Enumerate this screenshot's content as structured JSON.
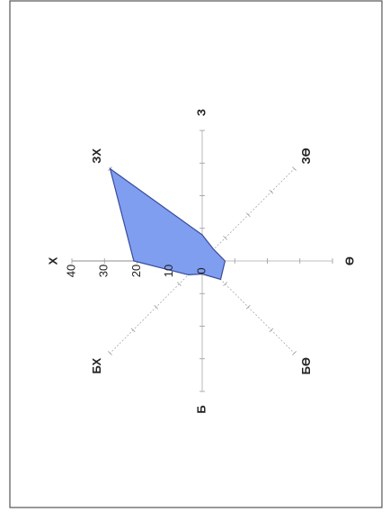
{
  "chart_data": {
    "type": "radar",
    "categories": [
      "Х",
      "ЗХ",
      "З",
      "ЗӨ",
      "Ө",
      "БӨ",
      "Б",
      "БХ"
    ],
    "values": [
      21,
      40,
      8,
      5,
      7,
      8,
      4,
      6
    ],
    "color": "#7f9ef0",
    "line_color": "#3a4a9c",
    "ylim": [
      0,
      40
    ],
    "yticks": [
      0,
      10,
      20,
      30,
      40
    ],
    "grid": true
  }
}
